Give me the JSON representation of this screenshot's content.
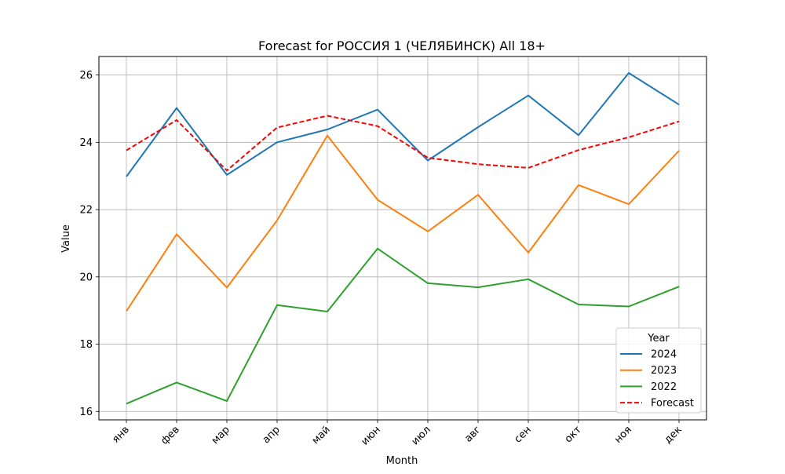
{
  "chart_data": {
    "type": "line",
    "title": "Forecast for РОССИЯ 1 (ЧЕЛЯБИНСК) All 18+",
    "xlabel": "Month",
    "ylabel": "Value",
    "categories": [
      "янв",
      "фев",
      "мар",
      "апр",
      "май",
      "июн",
      "июл",
      "авг",
      "сен",
      "окт",
      "ноя",
      "дек"
    ],
    "ylim": [
      15.75,
      26.55
    ],
    "yticks": [
      16,
      18,
      20,
      22,
      24,
      26
    ],
    "grid": true,
    "legend": {
      "title": "Year",
      "placement": "lower-right"
    },
    "series": [
      {
        "name": "2024",
        "color": "#1f77b4",
        "style": "solid",
        "values": [
          22.98,
          25.02,
          23.03,
          24.0,
          24.38,
          24.97,
          23.46,
          24.45,
          25.39,
          24.21,
          26.06,
          25.12
        ]
      },
      {
        "name": "2023",
        "color": "#ff7f0e",
        "style": "solid",
        "values": [
          18.98,
          21.27,
          19.68,
          21.68,
          24.2,
          22.29,
          21.35,
          22.44,
          20.72,
          22.73,
          22.16,
          23.75
        ]
      },
      {
        "name": "2022",
        "color": "#2ca02c",
        "style": "solid",
        "values": [
          16.23,
          16.86,
          16.31,
          19.16,
          18.97,
          20.84,
          19.81,
          19.69,
          19.93,
          19.18,
          19.12,
          19.71
        ]
      },
      {
        "name": "Forecast",
        "color": "#ff0000",
        "style": "dashed",
        "values": [
          23.76,
          24.66,
          23.16,
          24.44,
          24.79,
          24.48,
          23.54,
          23.35,
          23.24,
          23.77,
          24.15,
          24.62
        ]
      }
    ]
  }
}
